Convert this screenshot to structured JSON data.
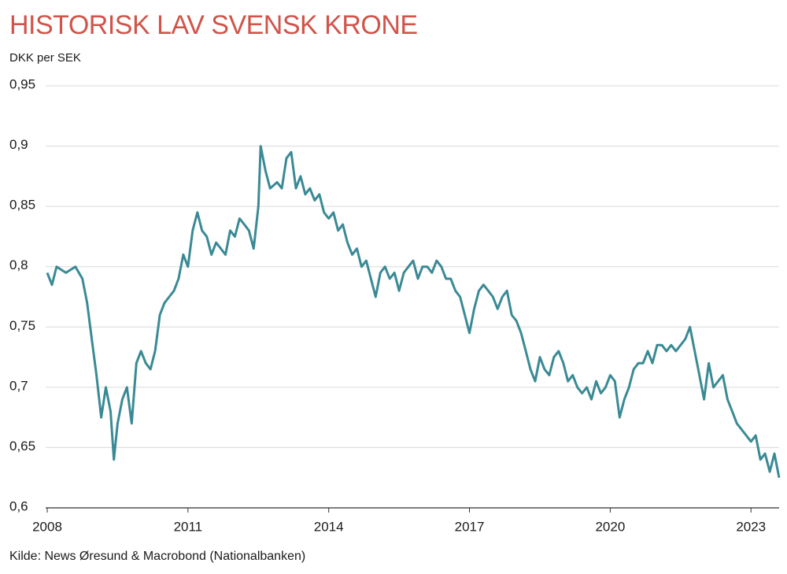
{
  "chart_data": {
    "type": "line",
    "title": "HISTORISK LAV SVENSK KRONE",
    "y_label": "DKK per SEK",
    "source": "Kilde: News Øresund & Macrobond (Nationalbanken)",
    "color": "#3a8a95",
    "grid": true,
    "xlim": [
      2008,
      2023.6
    ],
    "xticks": [
      2008,
      2011,
      2014,
      2017,
      2020,
      2023
    ],
    "ylim": [
      0.6,
      0.95
    ],
    "yticks": [
      {
        "value": 0.6,
        "label": "0,6"
      },
      {
        "value": 0.65,
        "label": "0,65"
      },
      {
        "value": 0.7,
        "label": "0,7"
      },
      {
        "value": 0.75,
        "label": "0,75"
      },
      {
        "value": 0.8,
        "label": "0,8"
      },
      {
        "value": 0.85,
        "label": "0,85"
      },
      {
        "value": 0.9,
        "label": "0,9"
      },
      {
        "value": 0.95,
        "label": "0,95"
      }
    ],
    "x": [
      2008.0,
      2008.1,
      2008.2,
      2008.4,
      2008.6,
      2008.75,
      2008.85,
      2008.95,
      2009.05,
      2009.15,
      2009.25,
      2009.35,
      2009.42,
      2009.5,
      2009.6,
      2009.7,
      2009.8,
      2009.9,
      2010.0,
      2010.1,
      2010.2,
      2010.3,
      2010.4,
      2010.5,
      2010.6,
      2010.7,
      2010.8,
      2010.9,
      2011.0,
      2011.1,
      2011.2,
      2011.3,
      2011.4,
      2011.5,
      2011.6,
      2011.7,
      2011.8,
      2011.9,
      2012.0,
      2012.1,
      2012.2,
      2012.3,
      2012.4,
      2012.5,
      2012.55,
      2012.65,
      2012.75,
      2012.9,
      2013.0,
      2013.1,
      2013.2,
      2013.3,
      2013.4,
      2013.5,
      2013.6,
      2013.7,
      2013.8,
      2013.9,
      2014.0,
      2014.1,
      2014.2,
      2014.3,
      2014.4,
      2014.5,
      2014.6,
      2014.7,
      2014.8,
      2014.9,
      2015.0,
      2015.1,
      2015.2,
      2015.3,
      2015.4,
      2015.5,
      2015.6,
      2015.7,
      2015.8,
      2015.9,
      2016.0,
      2016.1,
      2016.2,
      2016.3,
      2016.4,
      2016.5,
      2016.6,
      2016.7,
      2016.8,
      2016.9,
      2017.0,
      2017.1,
      2017.2,
      2017.3,
      2017.4,
      2017.5,
      2017.6,
      2017.7,
      2017.8,
      2017.9,
      2018.0,
      2018.1,
      2018.2,
      2018.3,
      2018.4,
      2018.5,
      2018.6,
      2018.7,
      2018.8,
      2018.9,
      2019.0,
      2019.1,
      2019.2,
      2019.3,
      2019.4,
      2019.5,
      2019.6,
      2019.7,
      2019.8,
      2019.9,
      2020.0,
      2020.1,
      2020.2,
      2020.3,
      2020.4,
      2020.5,
      2020.6,
      2020.7,
      2020.8,
      2020.9,
      2021.0,
      2021.1,
      2021.2,
      2021.3,
      2021.4,
      2021.5,
      2021.6,
      2021.7,
      2021.8,
      2021.9,
      2022.0,
      2022.1,
      2022.2,
      2022.3,
      2022.4,
      2022.5,
      2022.6,
      2022.7,
      2022.8,
      2022.9,
      2023.0,
      2023.1,
      2023.2,
      2023.3,
      2023.4,
      2023.5,
      2023.6
    ],
    "values": [
      0.795,
      0.785,
      0.8,
      0.795,
      0.8,
      0.79,
      0.77,
      0.74,
      0.71,
      0.675,
      0.7,
      0.68,
      0.64,
      0.67,
      0.69,
      0.7,
      0.67,
      0.72,
      0.73,
      0.72,
      0.715,
      0.73,
      0.76,
      0.77,
      0.775,
      0.78,
      0.79,
      0.81,
      0.8,
      0.83,
      0.845,
      0.83,
      0.825,
      0.81,
      0.82,
      0.815,
      0.81,
      0.83,
      0.825,
      0.84,
      0.835,
      0.83,
      0.815,
      0.85,
      0.9,
      0.88,
      0.865,
      0.87,
      0.865,
      0.89,
      0.895,
      0.865,
      0.875,
      0.86,
      0.865,
      0.855,
      0.86,
      0.845,
      0.84,
      0.845,
      0.83,
      0.835,
      0.82,
      0.81,
      0.815,
      0.8,
      0.805,
      0.79,
      0.775,
      0.795,
      0.8,
      0.79,
      0.795,
      0.78,
      0.795,
      0.8,
      0.805,
      0.79,
      0.8,
      0.8,
      0.795,
      0.805,
      0.8,
      0.79,
      0.79,
      0.78,
      0.775,
      0.76,
      0.745,
      0.765,
      0.78,
      0.785,
      0.78,
      0.775,
      0.765,
      0.775,
      0.78,
      0.76,
      0.755,
      0.745,
      0.73,
      0.715,
      0.705,
      0.725,
      0.715,
      0.71,
      0.725,
      0.73,
      0.72,
      0.705,
      0.71,
      0.7,
      0.695,
      0.7,
      0.69,
      0.705,
      0.695,
      0.7,
      0.71,
      0.705,
      0.675,
      0.69,
      0.7,
      0.715,
      0.72,
      0.72,
      0.73,
      0.72,
      0.735,
      0.735,
      0.73,
      0.735,
      0.73,
      0.735,
      0.74,
      0.75,
      0.73,
      0.71,
      0.69,
      0.72,
      0.7,
      0.705,
      0.71,
      0.69,
      0.68,
      0.67,
      0.665,
      0.66,
      0.655,
      0.66,
      0.64,
      0.645,
      0.63,
      0.645,
      0.625
    ]
  }
}
